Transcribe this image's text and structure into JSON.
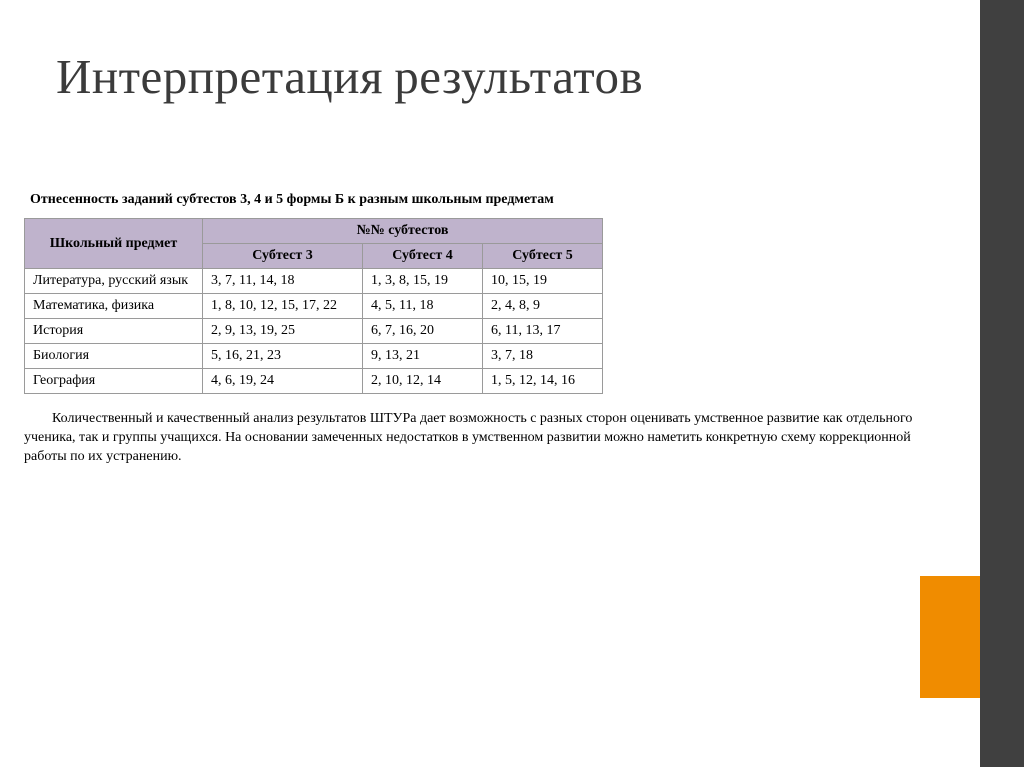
{
  "slide": {
    "title": "Интерпретация результатов",
    "table_title": "Отнесенность заданий субтестов 3, 4 и 5 формы Б к разным школьным предметам",
    "table": {
      "header": {
        "subject": "Школьный предмет",
        "subtests_group": "№№ субтестов",
        "sub3": "Субтест 3",
        "sub4": "Субтест 4",
        "sub5": "Субтест 5"
      },
      "rows": [
        {
          "subject": "Литература, русский язык",
          "s3": "3, 7, 11, 14, 18",
          "s4": "1, 3, 8, 15, 19",
          "s5": "10, 15, 19"
        },
        {
          "subject": "Математика, физика",
          "s3": "1, 8, 10, 12, 15, 17, 22",
          "s4": "4, 5, 11, 18",
          "s5": "2, 4, 8, 9"
        },
        {
          "subject": "История",
          "s3": "2, 9, 13, 19, 25",
          "s4": "6, 7, 16, 20",
          "s5": "6, 11, 13, 17"
        },
        {
          "subject": "Биология",
          "s3": "5, 16, 21, 23",
          "s4": "9, 13, 21",
          "s5": "3, 7, 18"
        },
        {
          "subject": "География",
          "s3": "4, 6, 19, 24",
          "s4": "2, 10, 12, 14",
          "s5": "1, 5, 12, 14, 16"
        }
      ]
    },
    "paragraph": "Количественный и качественный анализ результатов ШТУРа дает возможность с разных сторон оценивать умственное развитие как отдельного ученика, так и группы учащихся. На основании замеченных недостатков в умственном развитии можно наметить конкретную схему коррекционной работы по их устранению."
  },
  "style": {
    "accent_color": "#f08c00",
    "strip_color": "#404040",
    "header_bg": "#bfb3cc",
    "border_color": "#9a9a9a",
    "title_color": "#3b3b3b",
    "title_fontsize": 49,
    "body_fontsize": 14
  }
}
